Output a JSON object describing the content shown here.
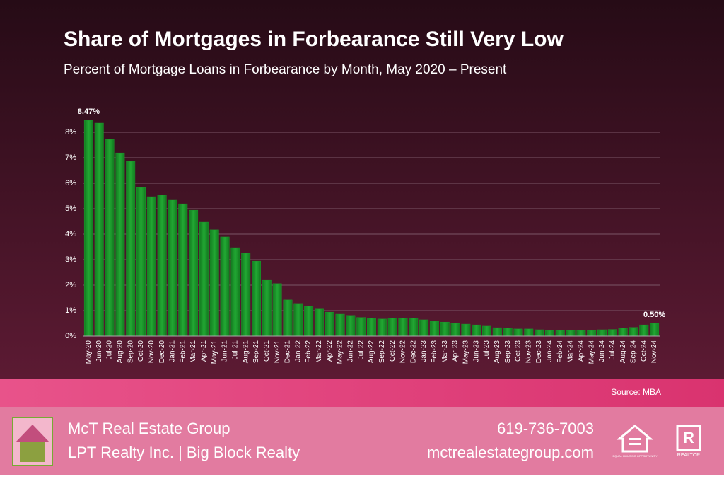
{
  "chart_data": {
    "type": "bar",
    "title": "Share of Mortgages in Forbearance Still Very Low",
    "subtitle": "Percent of Mortgage Loans in Forbearance by Month, May 2020 – Present",
    "source": "Source: MBA",
    "categories": [
      "May-20",
      "Jun-20",
      "Jul-20",
      "Aug-20",
      "Sep-20",
      "Oct-20",
      "Nov-20",
      "Dec-20",
      "Jan-21",
      "Feb-21",
      "Mar-21",
      "Apr-21",
      "May-21",
      "Jun-21",
      "Jul-21",
      "Aug-21",
      "Sep-21",
      "Oct-21",
      "Nov-21",
      "Dec-21",
      "Jan-22",
      "Feb-22",
      "Mar-22",
      "Apr-22",
      "May-22",
      "Jun-22",
      "Jul-22",
      "Aug-22",
      "Sep-22",
      "Oct-22",
      "Nov-22",
      "Dec-22",
      "Jan-23",
      "Feb-23",
      "Mar-23",
      "Apr-23",
      "May-23",
      "Jun-23",
      "Jul-23",
      "Aug-23",
      "Sep-23",
      "Oct-23",
      "Nov-23",
      "Dec-23",
      "Jan-24",
      "Feb-24",
      "Mar-24",
      "Apr-24",
      "May-24",
      "Jun-24",
      "Jul-24",
      "Aug-24",
      "Sep-24",
      "Oct-24",
      "Nov-24"
    ],
    "values": [
      8.47,
      8.36,
      7.72,
      7.19,
      6.86,
      5.83,
      5.47,
      5.53,
      5.36,
      5.19,
      4.94,
      4.47,
      4.17,
      3.89,
      3.47,
      3.25,
      2.94,
      2.19,
      2.06,
      1.42,
      1.28,
      1.17,
      1.06,
      0.94,
      0.86,
      0.81,
      0.73,
      0.7,
      0.67,
      0.7,
      0.7,
      0.7,
      0.64,
      0.58,
      0.55,
      0.5,
      0.47,
      0.44,
      0.39,
      0.33,
      0.31,
      0.28,
      0.28,
      0.25,
      0.22,
      0.22,
      0.22,
      0.22,
      0.22,
      0.25,
      0.26,
      0.31,
      0.34,
      0.44,
      0.5
    ],
    "value_labels": [
      "8.47%",
      null,
      null,
      null,
      null,
      null,
      null,
      null,
      null,
      null,
      null,
      null,
      null,
      null,
      null,
      null,
      null,
      null,
      null,
      null,
      null,
      null,
      null,
      null,
      null,
      null,
      null,
      null,
      null,
      null,
      null,
      null,
      null,
      null,
      null,
      null,
      null,
      null,
      null,
      null,
      null,
      null,
      null,
      null,
      null,
      null,
      null,
      null,
      null,
      null,
      null,
      null,
      null,
      null,
      "0.50%"
    ],
    "color": "#1c9a2c",
    "ylim": [
      0,
      8.5
    ],
    "yticks": [
      {
        "value": 0,
        "label": "0%"
      },
      {
        "value": 1,
        "label": "1%"
      },
      {
        "value": 2,
        "label": "2%"
      },
      {
        "value": 3,
        "label": "3%"
      },
      {
        "value": 4,
        "label": "4%"
      },
      {
        "value": 5,
        "label": "5%"
      },
      {
        "value": 6,
        "label": "6%"
      },
      {
        "value": 7,
        "label": "7%"
      },
      {
        "value": 8,
        "label": "8%"
      }
    ],
    "grid": true
  },
  "footer": {
    "company": "McT Real Estate Group",
    "brokerage": "LPT Realty Inc. | Big Block Realty",
    "phone": "619-736-7003",
    "website": "mctrealestategroup.com",
    "equal_housing": "EQUAL HOUSING OPPORTUNITY",
    "realtor": "REALTOR"
  }
}
